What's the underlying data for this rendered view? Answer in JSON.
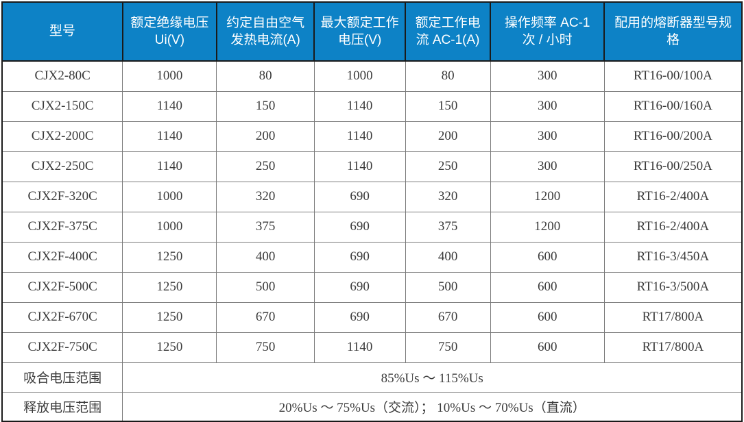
{
  "table": {
    "headers": [
      "型号",
      "额定绝缘电压 Ui(V)",
      "约定自由空气发热电流(A)",
      "最大额定工作电压(V)",
      "额定工作电流 AC-1(A)",
      "操作频率 AC-1 次 / 小时",
      "配用的熔断器型号规格"
    ],
    "rows": [
      [
        "CJX2-80C",
        "1000",
        "80",
        "1000",
        "80",
        "300",
        "RT16-00/100A"
      ],
      [
        "CJX2-150C",
        "1140",
        "150",
        "1140",
        "150",
        "300",
        "RT16-00/160A"
      ],
      [
        "CJX2-200C",
        "1140",
        "200",
        "1140",
        "200",
        "300",
        "RT16-00/200A"
      ],
      [
        "CJX2-250C",
        "1140",
        "250",
        "1140",
        "250",
        "300",
        "RT16-00/250A"
      ],
      [
        "CJX2F-320C",
        "1000",
        "320",
        "690",
        "320",
        "1200",
        "RT16-2/400A"
      ],
      [
        "CJX2F-375C",
        "1000",
        "375",
        "690",
        "375",
        "1200",
        "RT16-2/400A"
      ],
      [
        "CJX2F-400C",
        "1250",
        "400",
        "690",
        "400",
        "600",
        "RT16-3/450A"
      ],
      [
        "CJX2F-500C",
        "1250",
        "500",
        "690",
        "500",
        "600",
        "RT16-3/500A"
      ],
      [
        "CJX2F-670C",
        "1250",
        "670",
        "690",
        "670",
        "600",
        "RT17/800A"
      ],
      [
        "CJX2F-750C",
        "1250",
        "750",
        "1140",
        "750",
        "600",
        "RT17/800A"
      ]
    ],
    "footer_rows": [
      {
        "label": "吸合电压范围",
        "value": "85%Us ～ 115%Us"
      },
      {
        "label": "释放电压范围",
        "value": "20%Us ～ 75%Us（交流）； 10%Us ～ 70%Us（直流）"
      }
    ],
    "colors": {
      "header_bg": "#0d82c6",
      "header_text": "#ffffff",
      "body_text": "#3a3a3a",
      "grid_line": "#7a7a7a",
      "outer_border": "#1a1a1a"
    }
  }
}
